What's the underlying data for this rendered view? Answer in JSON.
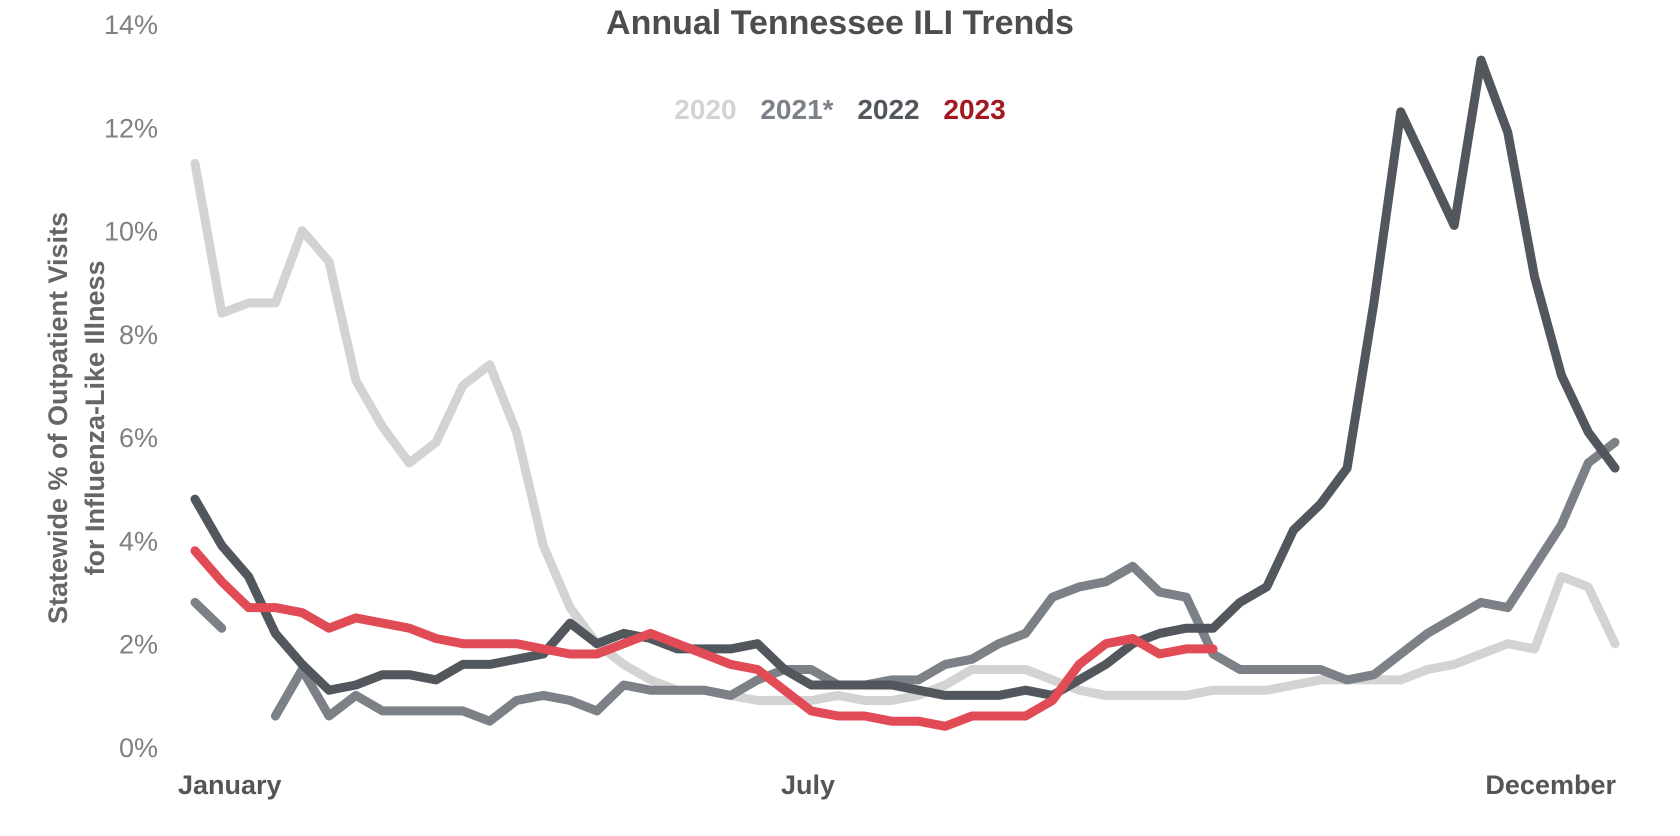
{
  "chart_data": {
    "type": "line",
    "title": "Annual Tennessee ILI Trends",
    "ylabel_lines": [
      "Statewide % of Outpatient Visits",
      "for Influenza-Like Illness"
    ],
    "xlabel": "",
    "ylim": [
      0,
      14
    ],
    "yticks": [
      "0%",
      "2%",
      "4%",
      "6%",
      "8%",
      "10%",
      "12%",
      "14%"
    ],
    "ytick_values": [
      0,
      2,
      4,
      6,
      8,
      10,
      12,
      14
    ],
    "xticks": [
      {
        "label": "January",
        "week": 1
      },
      {
        "label": "July",
        "week": 26
      },
      {
        "label": "December",
        "week": 52
      }
    ],
    "xrange": [
      1,
      52
    ],
    "grid": false,
    "legend_position": "top-center",
    "series": [
      {
        "name": "2020",
        "color": "#d3d3d3",
        "segments": [
          [
            [
              1,
              11.3
            ],
            [
              2,
              8.4
            ],
            [
              3,
              8.6
            ],
            [
              4,
              8.6
            ],
            [
              5,
              10.0
            ],
            [
              6,
              9.4
            ],
            [
              7,
              7.1
            ],
            [
              8,
              6.2
            ],
            [
              9,
              5.5
            ],
            [
              10,
              5.9
            ],
            [
              11,
              7.0
            ],
            [
              12,
              7.4
            ],
            [
              13,
              6.1
            ],
            [
              14,
              3.9
            ],
            [
              15,
              2.7
            ],
            [
              16,
              2.0
            ],
            [
              17,
              1.6
            ],
            [
              18,
              1.3
            ],
            [
              19,
              1.1
            ],
            [
              20,
              1.1
            ],
            [
              21,
              1.0
            ],
            [
              22,
              0.9
            ],
            [
              23,
              0.9
            ],
            [
              24,
              0.9
            ],
            [
              25,
              1.0
            ],
            [
              26,
              0.9
            ],
            [
              27,
              0.9
            ],
            [
              28,
              1.0
            ],
            [
              29,
              1.2
            ],
            [
              30,
              1.5
            ],
            [
              31,
              1.5
            ],
            [
              32,
              1.5
            ],
            [
              33,
              1.3
            ],
            [
              34,
              1.1
            ],
            [
              35,
              1.0
            ],
            [
              36,
              1.0
            ],
            [
              37,
              1.0
            ],
            [
              38,
              1.0
            ],
            [
              39,
              1.1
            ],
            [
              40,
              1.1
            ],
            [
              41,
              1.1
            ],
            [
              42,
              1.2
            ],
            [
              43,
              1.3
            ],
            [
              44,
              1.3
            ],
            [
              45,
              1.3
            ],
            [
              46,
              1.3
            ],
            [
              47,
              1.5
            ],
            [
              48,
              1.6
            ],
            [
              49,
              1.8
            ],
            [
              50,
              2.0
            ],
            [
              51,
              1.9
            ],
            [
              52,
              3.3
            ],
            [
              53,
              3.1
            ],
            [
              54,
              2.0
            ]
          ]
        ]
      },
      {
        "name": "2021*",
        "color": "#7c8188",
        "segments": [
          [
            [
              1,
              2.8
            ],
            [
              2,
              2.3
            ]
          ],
          [
            [
              4,
              0.6
            ],
            [
              5,
              1.5
            ],
            [
              6,
              0.6
            ],
            [
              7,
              1.0
            ],
            [
              8,
              0.7
            ],
            [
              9,
              0.7
            ],
            [
              10,
              0.7
            ],
            [
              11,
              0.7
            ],
            [
              12,
              0.5
            ],
            [
              13,
              0.9
            ],
            [
              14,
              1.0
            ],
            [
              15,
              0.9
            ],
            [
              16,
              0.7
            ],
            [
              17,
              1.2
            ],
            [
              18,
              1.1
            ],
            [
              19,
              1.1
            ],
            [
              20,
              1.1
            ],
            [
              21,
              1.0
            ],
            [
              22,
              1.3
            ],
            [
              23,
              1.5
            ],
            [
              24,
              1.5
            ],
            [
              25,
              1.2
            ],
            [
              26,
              1.2
            ],
            [
              27,
              1.3
            ],
            [
              28,
              1.3
            ],
            [
              29,
              1.6
            ],
            [
              30,
              1.7
            ],
            [
              31,
              2.0
            ],
            [
              32,
              2.2
            ],
            [
              33,
              2.9
            ],
            [
              34,
              3.1
            ],
            [
              35,
              3.2
            ],
            [
              36,
              3.5
            ],
            [
              37,
              3.0
            ],
            [
              38,
              2.9
            ],
            [
              39,
              1.8
            ],
            [
              40,
              1.5
            ],
            [
              41,
              1.5
            ],
            [
              42,
              1.5
            ],
            [
              43,
              1.5
            ],
            [
              44,
              1.3
            ],
            [
              45,
              1.4
            ],
            [
              46,
              1.8
            ],
            [
              47,
              2.2
            ],
            [
              48,
              2.5
            ],
            [
              49,
              2.8
            ],
            [
              50,
              2.7
            ],
            [
              51,
              3.5
            ],
            [
              52,
              4.3
            ],
            [
              53,
              5.5
            ],
            [
              54,
              5.9
            ]
          ]
        ]
      },
      {
        "name": "2022",
        "color": "#52565d",
        "segments": [
          [
            [
              1,
              4.8
            ],
            [
              2,
              3.9
            ],
            [
              3,
              3.3
            ],
            [
              4,
              2.2
            ],
            [
              5,
              1.6
            ],
            [
              6,
              1.1
            ],
            [
              7,
              1.2
            ],
            [
              8,
              1.4
            ],
            [
              9,
              1.4
            ],
            [
              10,
              1.3
            ],
            [
              11,
              1.6
            ],
            [
              12,
              1.6
            ],
            [
              13,
              1.7
            ],
            [
              14,
              1.8
            ],
            [
              15,
              2.4
            ],
            [
              16,
              2.0
            ],
            [
              17,
              2.2
            ],
            [
              18,
              2.1
            ],
            [
              19,
              1.9
            ],
            [
              20,
              1.9
            ],
            [
              21,
              1.9
            ],
            [
              22,
              2.0
            ],
            [
              23,
              1.5
            ],
            [
              24,
              1.2
            ],
            [
              25,
              1.2
            ],
            [
              26,
              1.2
            ],
            [
              27,
              1.2
            ],
            [
              28,
              1.1
            ],
            [
              29,
              1.0
            ],
            [
              30,
              1.0
            ],
            [
              31,
              1.0
            ],
            [
              32,
              1.1
            ],
            [
              33,
              1.0
            ],
            [
              34,
              1.3
            ],
            [
              35,
              1.6
            ],
            [
              36,
              2.0
            ],
            [
              37,
              2.2
            ],
            [
              38,
              2.3
            ],
            [
              39,
              2.3
            ],
            [
              40,
              2.8
            ],
            [
              41,
              3.1
            ],
            [
              42,
              4.2
            ],
            [
              43,
              4.7
            ],
            [
              44,
              5.4
            ],
            [
              45,
              8.6
            ],
            [
              46,
              12.3
            ],
            [
              47,
              11.2
            ],
            [
              48,
              10.1
            ],
            [
              49,
              13.3
            ],
            [
              50,
              11.9
            ],
            [
              51,
              9.1
            ],
            [
              52,
              7.2
            ],
            [
              53,
              6.1
            ],
            [
              54,
              5.4
            ]
          ]
        ]
      },
      {
        "name": "2023",
        "color": "#e04b55",
        "label_color": "#a3171f",
        "segments": [
          [
            [
              1,
              3.8
            ],
            [
              2,
              3.2
            ],
            [
              3,
              2.7
            ],
            [
              4,
              2.7
            ],
            [
              5,
              2.6
            ],
            [
              6,
              2.3
            ],
            [
              7,
              2.5
            ],
            [
              8,
              2.4
            ],
            [
              9,
              2.3
            ],
            [
              10,
              2.1
            ],
            [
              11,
              2.0
            ],
            [
              12,
              2.0
            ],
            [
              13,
              2.0
            ],
            [
              14,
              1.9
            ],
            [
              15,
              1.8
            ],
            [
              16,
              1.8
            ],
            [
              17,
              2.0
            ],
            [
              18,
              2.2
            ],
            [
              19,
              2.0
            ],
            [
              20,
              1.8
            ],
            [
              21,
              1.6
            ],
            [
              22,
              1.5
            ],
            [
              23,
              1.1
            ],
            [
              24,
              0.7
            ],
            [
              25,
              0.6
            ],
            [
              26,
              0.6
            ],
            [
              27,
              0.5
            ],
            [
              28,
              0.5
            ],
            [
              29,
              0.4
            ],
            [
              30,
              0.6
            ],
            [
              31,
              0.6
            ],
            [
              32,
              0.6
            ],
            [
              33,
              0.9
            ],
            [
              34,
              1.6
            ],
            [
              35,
              2.0
            ],
            [
              36,
              2.1
            ],
            [
              37,
              1.8
            ],
            [
              38,
              1.9
            ],
            [
              39,
              1.9
            ]
          ]
        ]
      }
    ]
  }
}
